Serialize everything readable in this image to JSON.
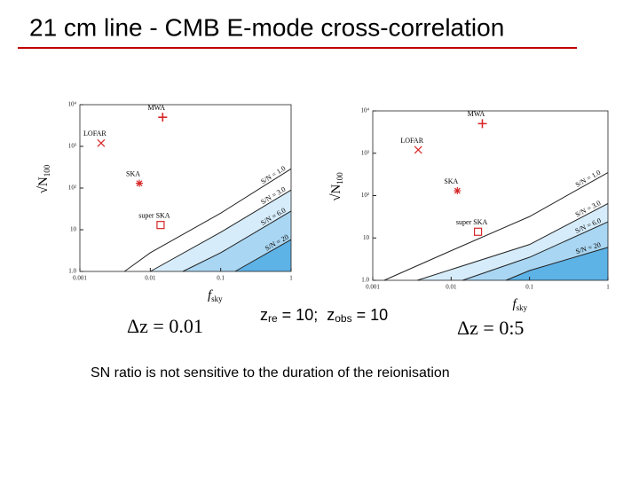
{
  "slide": {
    "title": "21 cm line - CMB E-mode cross-correlation",
    "caption": "SN ratio is not sensitive to the duration of the reionisation",
    "redshift": {
      "z1": "z",
      "z1_sub": "re",
      "z1_rest": " = 10;",
      "z2": "z",
      "z2_sub": "obs",
      "z2_rest": " = 10"
    }
  },
  "chart_data": [
    {
      "type": "scatter",
      "x_label": "f",
      "x_label_sub": "sky",
      "y_label": "√N",
      "y_label_sub": "100",
      "log_x": true,
      "log_y": true,
      "xlim": [
        0.001,
        1
      ],
      "ylim": [
        1,
        10000
      ],
      "xticks": [
        0.001,
        0.01,
        0.1,
        1
      ],
      "yticks": [
        {
          "value": 1,
          "label": "1.0"
        },
        10,
        {
          "value": 100,
          "label": "10²"
        },
        {
          "value": 1000,
          "label": "10³"
        },
        {
          "value": 10000,
          "label": "10⁴"
        }
      ],
      "series": [
        {
          "name": "MWA",
          "marker": "plus",
          "color": "#d62728",
          "x": [
            0.015
          ],
          "values": [
            5000
          ]
        },
        {
          "name": "LOFAR",
          "marker": "cross",
          "color": "#d62728",
          "x": [
            0.002
          ],
          "values": [
            1200
          ]
        },
        {
          "name": "SKA",
          "marker": "asterisk",
          "color": "#d62728",
          "x": [
            0.007
          ],
          "values": [
            130
          ]
        },
        {
          "name": "super SKA",
          "marker": "square",
          "color": "#d62728",
          "x": [
            0.014
          ],
          "values": [
            13
          ]
        }
      ],
      "contours": [
        {
          "name": "S/N = 1.0",
          "x": [
            0.0043,
            0.01,
            0.1,
            1
          ],
          "values": [
            1,
            2.8,
            25,
            290
          ]
        },
        {
          "name": "S/N = 3.0",
          "fill": "#d6ecfa",
          "x": [
            0.01,
            0.1,
            1
          ],
          "values": [
            1,
            8.7,
            90
          ]
        },
        {
          "name": "S/N = 6.0",
          "fill": "#a9d6f2",
          "x": [
            0.029,
            0.1,
            1
          ],
          "values": [
            1,
            2.8,
            28
          ]
        },
        {
          "name": "S/N = 20",
          "fill": "#5db2e6",
          "x": [
            0.16,
            1
          ],
          "values": [
            1,
            5.8
          ]
        }
      ],
      "annotation": "Δz = 0.01"
    },
    {
      "type": "scatter",
      "x_label": "f",
      "x_label_sub": "sky",
      "y_label": "√N",
      "y_label_sub": "100",
      "log_x": true,
      "log_y": true,
      "xlim": [
        0.001,
        1
      ],
      "ylim": [
        1,
        10000
      ],
      "xticks": [
        0.001,
        0.01,
        0.1,
        1
      ],
      "yticks": [
        {
          "value": 1,
          "label": "1.0"
        },
        10,
        {
          "value": 100,
          "label": "10²"
        },
        {
          "value": 1000,
          "label": "10³"
        },
        {
          "value": 10000,
          "label": "10⁴"
        }
      ],
      "series": [
        {
          "name": "MWA",
          "marker": "plus",
          "color": "#d62728",
          "x": [
            0.025
          ],
          "values": [
            5000
          ]
        },
        {
          "name": "LOFAR",
          "marker": "cross",
          "color": "#d62728",
          "x": [
            0.0038
          ],
          "values": [
            1200
          ]
        },
        {
          "name": "SKA",
          "marker": "asterisk",
          "color": "#d62728",
          "x": [
            0.012
          ],
          "values": [
            130
          ]
        },
        {
          "name": "super SKA",
          "marker": "square",
          "color": "#d62728",
          "x": [
            0.022
          ],
          "values": [
            14
          ]
        }
      ],
      "contours": [
        {
          "name": "S/N = 1.0",
          "x": [
            0.0014,
            0.01,
            0.1,
            1
          ],
          "values": [
            1,
            5,
            32,
            350
          ]
        },
        {
          "name": "S/N = 3.0",
          "fill": "#d6ecfa",
          "x": [
            0.0037,
            0.1,
            1
          ],
          "values": [
            1,
            7,
            65
          ]
        },
        {
          "name": "S/N = 6.0",
          "fill": "#a9d6f2",
          "x": [
            0.014,
            0.1,
            1
          ],
          "values": [
            1,
            3.5,
            24
          ]
        },
        {
          "name": "S/N = 20",
          "fill": "#5db2e6",
          "x": [
            0.05,
            0.1,
            1
          ],
          "values": [
            1,
            1.7,
            6
          ]
        }
      ],
      "annotation": "Δz = 0:5"
    }
  ]
}
